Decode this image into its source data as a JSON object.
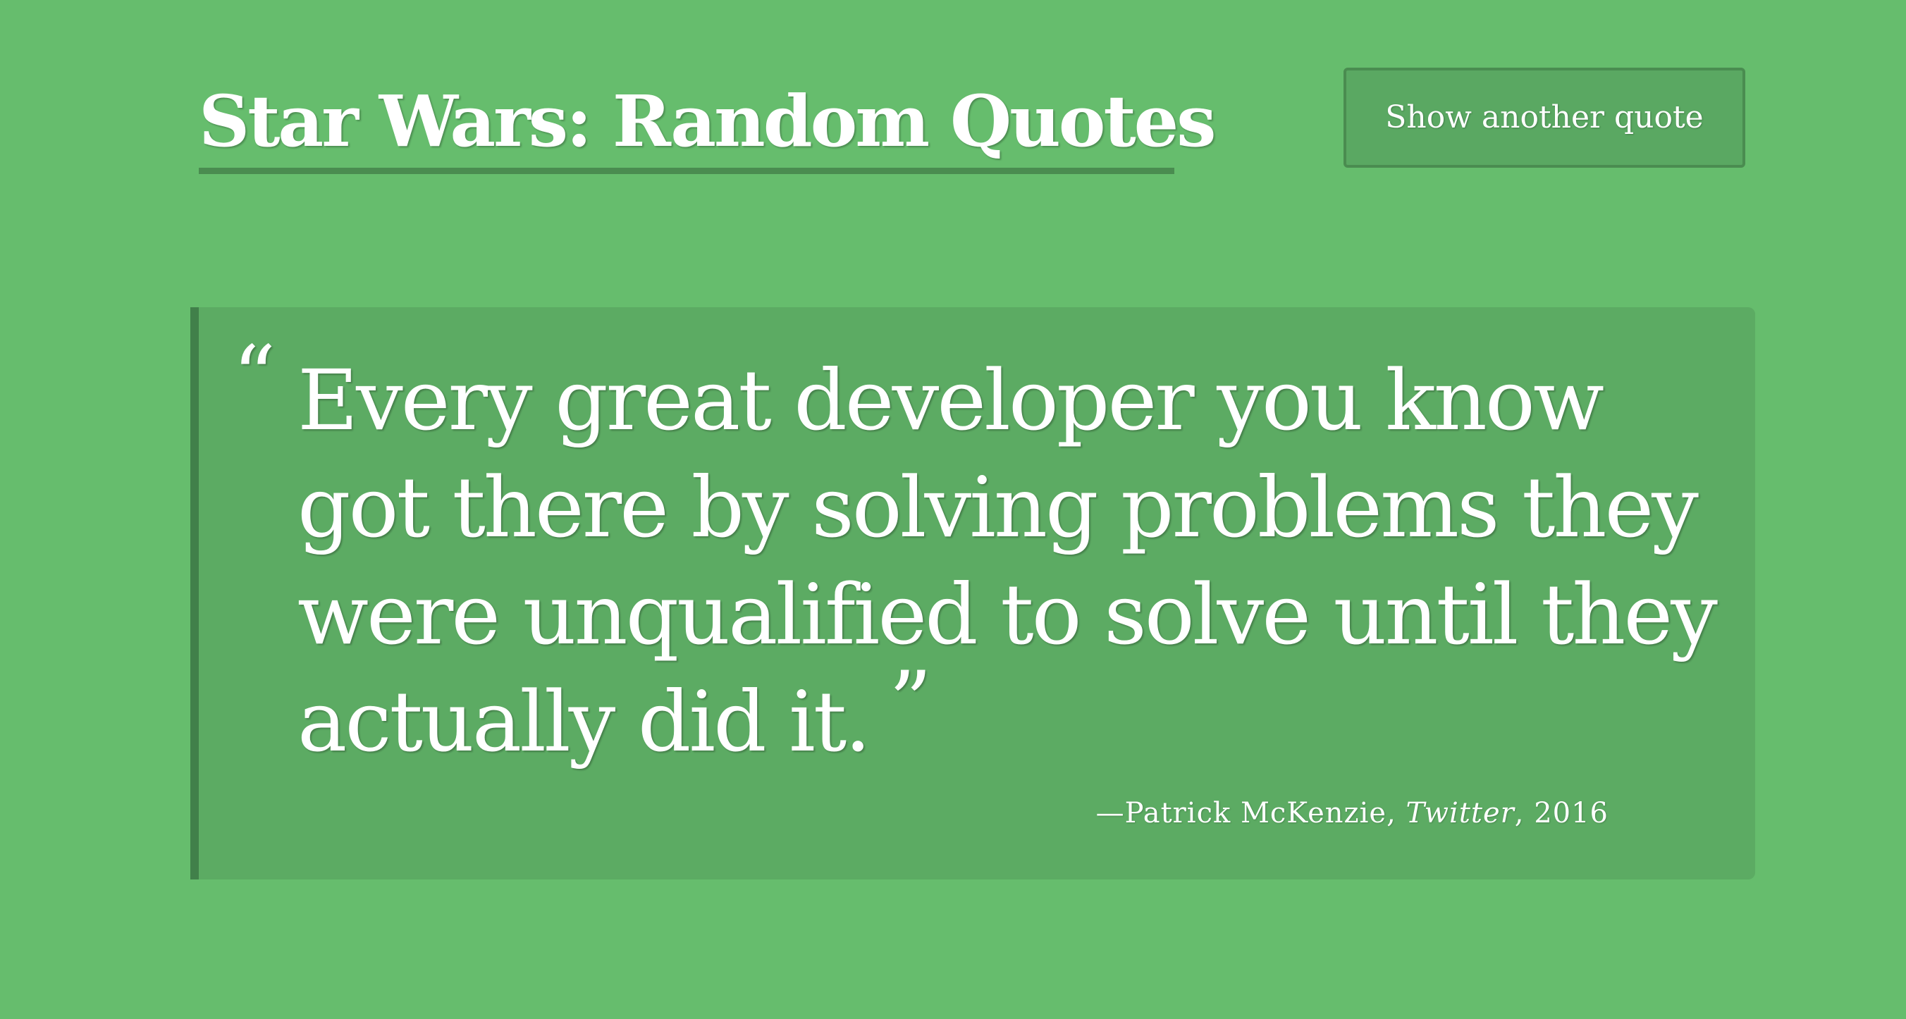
{
  "header": {
    "title": "Star Wars: Random Quotes",
    "button_label": "Show another quote"
  },
  "quote": {
    "open_mark": "“",
    "text": "Every great developer you know got there by solving problems they were unqualified to solve until they actually did it.",
    "close_mark": "”",
    "attribution": {
      "prefix": "—Patrick McKenzie, ",
      "source": "Twitter",
      "suffix": ", 2016"
    }
  },
  "colors": {
    "background": "#66bd6d",
    "card": "#5cab63",
    "accent_border": "#41804a",
    "text": "#ffffff"
  }
}
